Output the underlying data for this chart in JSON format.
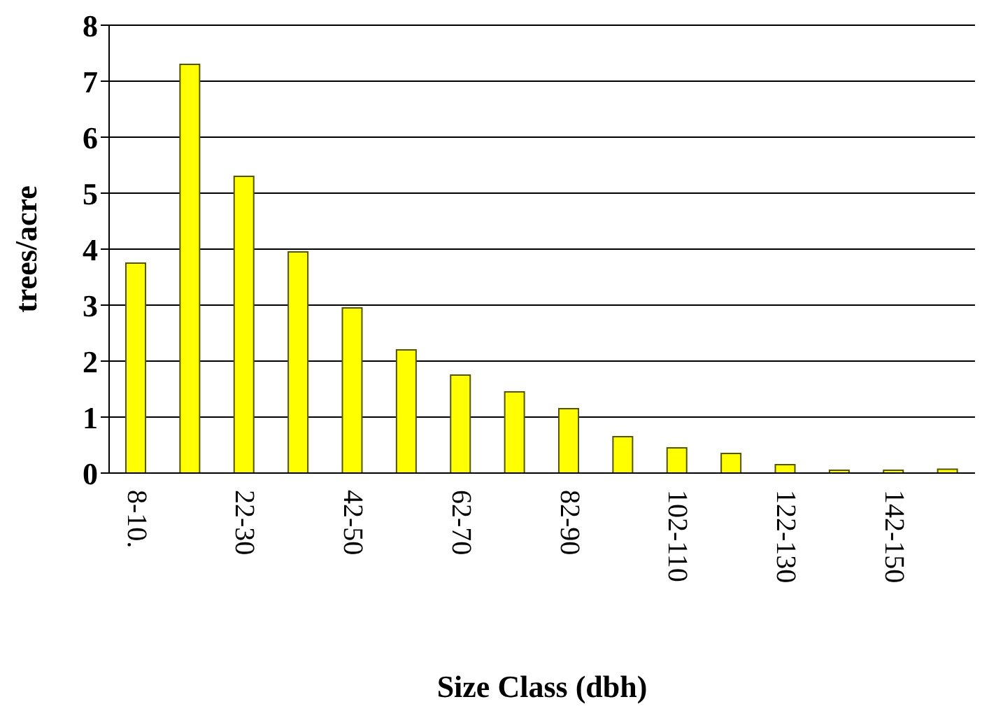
{
  "chart_data": {
    "type": "bar",
    "xlabel": "Size Class (dbh)",
    "ylabel": "trees/acre",
    "categories": [
      "8-10.",
      null,
      "22-30",
      null,
      "42-50",
      null,
      "62-70",
      null,
      "82-90",
      null,
      "102-110",
      null,
      "122-130",
      null,
      "142-150",
      null
    ],
    "values": [
      3.75,
      7.3,
      5.3,
      3.95,
      2.95,
      2.2,
      1.75,
      1.45,
      1.15,
      0.65,
      0.45,
      0.35,
      0.15,
      0.05,
      0.05,
      0.07
    ],
    "color": "#ffff00",
    "ylim": [
      0,
      8
    ],
    "yticks": [
      0,
      1,
      2,
      3,
      4,
      5,
      6,
      7,
      8
    ],
    "grid": "y"
  }
}
